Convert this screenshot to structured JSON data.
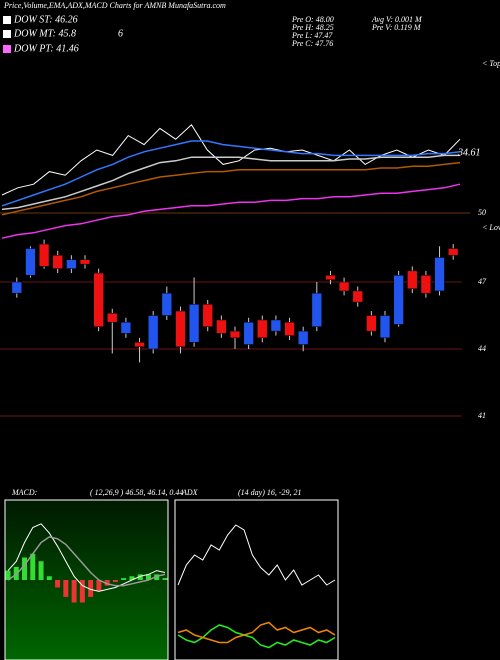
{
  "header": {
    "title": "Price,Volume,EMA,ADX,MACD Charts for AMNB MunafaSutra.com",
    "legend": [
      {
        "label": "DOW ST: 46.26",
        "color": "#ffffff"
      },
      {
        "label": "DOW MT: 45.8",
        "color": "#ffffff"
      },
      {
        "label": "DOW PT: 41.46",
        "color": "#ff66ff"
      }
    ],
    "legend_extra": "6",
    "info_left": [
      "Pre  O: 48.00",
      "Pre  H: 48.25",
      "Pre  L: 47.47",
      "Pre  C: 47.76"
    ],
    "info_right": [
      "Avg  V: 0.001 M",
      "Pre  V: 0.119 M"
    ],
    "top_label": "< Topa",
    "low_label": "< Lowea"
  },
  "chart_data": [
    {
      "type": "line",
      "ylim": [
        48.5,
        58.5
      ],
      "yticks": [
        50
      ],
      "annotations": [
        "34.61"
      ],
      "categories": [
        null,
        null,
        null,
        null,
        null,
        null,
        null,
        null,
        null,
        null,
        null,
        null,
        null,
        null,
        null,
        null,
        null,
        null,
        null,
        null,
        null,
        null,
        null,
        null,
        null,
        null,
        null,
        null,
        null,
        null
      ],
      "series": [
        {
          "color": "#ffffff",
          "values": [
            51.0,
            51.4,
            51.6,
            52.3,
            52.1,
            52.9,
            53.5,
            53.2,
            54.3,
            53.8,
            54.7,
            54.1,
            54.9,
            53.5,
            52.7,
            52.9,
            53.5,
            53.6,
            53.4,
            53.5,
            53.2,
            52.9,
            53.5,
            52.7,
            53.2,
            53.5,
            53.1,
            53.5,
            53.2,
            54.1
          ]
        },
        {
          "color": "#3377ff",
          "values": [
            50.4,
            50.7,
            51.0,
            51.3,
            51.6,
            52.0,
            52.4,
            52.7,
            53.1,
            53.4,
            53.6,
            53.8,
            54.0,
            54.0,
            53.8,
            53.7,
            53.6,
            53.5,
            53.4,
            53.3,
            53.3,
            53.2,
            53.2,
            53.2,
            53.2,
            53.2,
            53.2,
            53.3,
            53.3,
            53.4
          ]
        },
        {
          "color": "#cccccc",
          "values": [
            50.2,
            50.3,
            50.5,
            50.7,
            50.9,
            51.2,
            51.5,
            51.8,
            52.2,
            52.5,
            52.8,
            52.9,
            53.1,
            53.1,
            53.1,
            53.1,
            53.0,
            52.9,
            52.9,
            52.9,
            52.9,
            52.9,
            53.0,
            53.0,
            53.1,
            53.1,
            53.1,
            53.1,
            53.2,
            53.2
          ]
        },
        {
          "color": "#b35900",
          "values": [
            49.9,
            50.1,
            50.3,
            50.5,
            50.7,
            50.9,
            51.2,
            51.4,
            51.6,
            51.8,
            52.0,
            52.1,
            52.2,
            52.3,
            52.3,
            52.4,
            52.4,
            52.4,
            52.4,
            52.4,
            52.4,
            52.4,
            52.4,
            52.4,
            52.5,
            52.5,
            52.6,
            52.6,
            52.7,
            52.8
          ]
        },
        {
          "color": "#ee33ee",
          "values": [
            48.6,
            48.8,
            48.9,
            49.1,
            49.3,
            49.4,
            49.6,
            49.8,
            49.9,
            50.1,
            50.2,
            50.3,
            50.4,
            50.4,
            50.5,
            50.6,
            50.6,
            50.7,
            50.7,
            50.8,
            50.8,
            50.9,
            50.9,
            51.0,
            51.1,
            51.1,
            51.2,
            51.3,
            51.4,
            51.6
          ]
        }
      ]
    },
    {
      "type": "candlestick",
      "ylim": [
        39.7,
        49.33
      ],
      "yticks": [
        47,
        44,
        41
      ],
      "grid_color": "#8b1a1a",
      "up_color": "#2255ee",
      "down_color": "#ee1111",
      "categories": [
        null,
        null,
        null,
        null,
        null,
        null,
        null,
        null,
        null,
        null,
        null,
        null,
        null,
        null,
        null,
        null,
        null,
        null,
        null,
        null,
        null,
        null,
        null,
        null,
        null,
        null,
        null,
        null,
        null,
        null,
        null,
        null,
        null
      ],
      "open": [
        46.5,
        47.3,
        48.7,
        48.2,
        47.6,
        48.0,
        47.4,
        45.6,
        44.7,
        44.3,
        44.0,
        45.5,
        45.7,
        44.3,
        46.0,
        45.3,
        44.8,
        44.2,
        45.3,
        44.8,
        45.2,
        44.2,
        45.0,
        47.3,
        47.0,
        46.6,
        45.5,
        44.5,
        45.1,
        47.5,
        47.3,
        46.6,
        48.5
      ],
      "high": [
        47.2,
        48.6,
        48.9,
        48.4,
        48.2,
        48.2,
        47.6,
        45.8,
        45.4,
        44.5,
        45.7,
        46.8,
        45.9,
        47.2,
        46.2,
        45.5,
        45.0,
        45.4,
        45.5,
        45.5,
        45.4,
        45.0,
        47.0,
        47.5,
        47.2,
        46.8,
        45.7,
        45.7,
        47.5,
        47.7,
        47.5,
        48.6,
        48.7
      ],
      "low": [
        46.3,
        47.2,
        47.6,
        47.4,
        47.4,
        47.6,
        44.8,
        43.8,
        44.5,
        43.4,
        43.8,
        45.3,
        43.8,
        44.1,
        44.8,
        44.5,
        44.0,
        44.0,
        44.3,
        44.6,
        44.4,
        43.9,
        44.8,
        46.9,
        46.4,
        45.9,
        44.6,
        44.3,
        45.0,
        46.5,
        46.3,
        46.4,
        48.0
      ],
      "close": [
        47.0,
        48.5,
        47.7,
        47.6,
        48.0,
        47.8,
        45.0,
        45.2,
        45.2,
        44.1,
        45.5,
        46.5,
        44.1,
        46.0,
        45.0,
        44.7,
        44.5,
        45.2,
        44.5,
        45.3,
        44.6,
        44.8,
        46.5,
        47.1,
        46.6,
        46.1,
        44.8,
        45.5,
        47.3,
        46.7,
        46.5,
        48.1,
        48.2
      ]
    },
    {
      "type": "macd",
      "title": "MACD:",
      "subtitle": "( 12,26,9 ) 46.58, 46.14, 0.44",
      "ylim": [
        -0.4,
        0.4
      ],
      "categories": [
        null,
        null,
        null,
        null,
        null,
        null,
        null,
        null,
        null,
        null,
        null,
        null,
        null,
        null,
        null,
        null,
        null,
        null,
        null,
        null
      ],
      "series": [
        {
          "color": "#ffffff",
          "values": [
            0.05,
            0.1,
            0.2,
            0.28,
            0.3,
            0.25,
            0.18,
            0.1,
            0.02,
            -0.03,
            -0.05,
            -0.06,
            -0.05,
            -0.04,
            -0.02,
            0.0,
            0.02,
            0.03,
            0.05,
            0.04
          ]
        },
        {
          "color": "#999999",
          "values": [
            0.0,
            0.03,
            0.08,
            0.14,
            0.2,
            0.23,
            0.22,
            0.19,
            0.14,
            0.09,
            0.04,
            0.0,
            -0.02,
            -0.03,
            -0.03,
            -0.02,
            -0.01,
            0.0,
            0.02,
            0.03
          ]
        }
      ],
      "histogram": [
        0.05,
        0.07,
        0.12,
        0.14,
        0.1,
        0.02,
        -0.04,
        -0.09,
        -0.12,
        -0.12,
        -0.09,
        -0.06,
        -0.03,
        -0.01,
        0.01,
        0.02,
        0.03,
        0.03,
        0.03,
        0.01
      ],
      "up_color": "#33dd33",
      "down_color": "#ee3333"
    },
    {
      "type": "adx",
      "title": "ADX",
      "subtitle": "(14 day) 16, -29, 21",
      "ylim": [
        0,
        60
      ],
      "categories": [
        null,
        null,
        null,
        null,
        null,
        null,
        null,
        null,
        null,
        null,
        null,
        null,
        null,
        null,
        null,
        null,
        null,
        null,
        null,
        null
      ],
      "series": [
        {
          "color": "#ffffff",
          "values": [
            28,
            36,
            40,
            38,
            44,
            42,
            48,
            52,
            50,
            40,
            35,
            32,
            36,
            30,
            34,
            28,
            30,
            32,
            28,
            30
          ]
        },
        {
          "color": "#22ee22",
          "values": [
            8,
            6,
            5,
            7,
            10,
            12,
            11,
            9,
            8,
            7,
            4,
            3,
            5,
            4,
            6,
            5,
            4,
            6,
            5,
            7
          ]
        },
        {
          "color": "#ee8800",
          "values": [
            9,
            10,
            8,
            7,
            6,
            5,
            5,
            7,
            8,
            9,
            12,
            13,
            10,
            11,
            9,
            10,
            11,
            9,
            10,
            8
          ]
        }
      ]
    }
  ]
}
